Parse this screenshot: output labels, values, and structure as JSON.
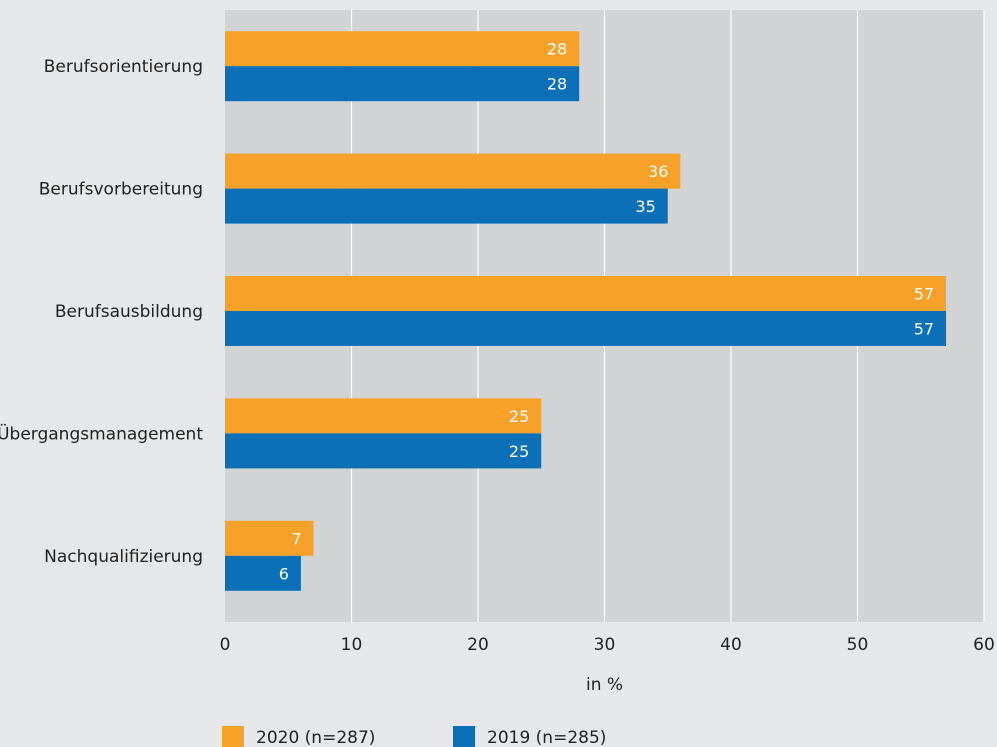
{
  "chart_data": {
    "type": "bar",
    "orientation": "horizontal",
    "categories": [
      "Berufsorientierung",
      "Berufsvorbereitung",
      "Berufsausbildung",
      "Übergangsmanagement",
      "Nachqualifizierung"
    ],
    "series": [
      {
        "name": "2020 (n=287)",
        "color": "#f7a128",
        "values": [
          28,
          36,
          57,
          25,
          7
        ]
      },
      {
        "name": "2019 (n=285)",
        "color": "#0b70b8",
        "values": [
          28,
          35,
          57,
          25,
          6
        ]
      }
    ],
    "xlabel": "in %",
    "ylabel": "",
    "title": "",
    "xlim": [
      0,
      60
    ],
    "xticks": [
      0,
      10,
      20,
      30,
      40,
      50,
      60
    ],
    "grid": true,
    "legend": "bottom",
    "colors": {
      "plot_background": "#d1d3d4",
      "page_background": "#e6e7e8",
      "gridline": "#ffffff"
    }
  }
}
